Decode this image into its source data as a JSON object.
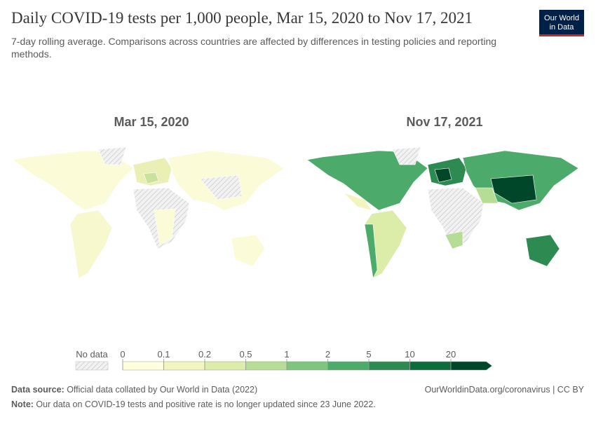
{
  "header": {
    "title": "Daily COVID-19 tests per 1,000 people, Mar 15, 2020 to Nov 17, 2021",
    "subtitle_lines": [
      "7-day rolling average. Comparisons across countries are affected by differences in testing policies and reporting",
      "methods."
    ]
  },
  "logo": {
    "lines": [
      "Our World",
      "in Data"
    ]
  },
  "maps": [
    {
      "title": "Mar 15, 2020"
    },
    {
      "title": "Nov 17, 2021"
    }
  ],
  "legend": {
    "no_data_label": "No data",
    "ticks": [
      0,
      0.1,
      0.2,
      0.5,
      1,
      2,
      5,
      10,
      20
    ],
    "colors": [
      "#ffffe0",
      "#f2f5bf",
      "#dcedaa",
      "#b5dd96",
      "#7fc47f",
      "#4caa6a",
      "#2d8a50",
      "#0e6b3a",
      "#00472a"
    ]
  },
  "footer": {
    "source_label": "Data source:",
    "source_text": " Official data collated by Our World in Data (2022)",
    "url": "OurWorldinData.org/coronavirus | CC BY",
    "note_label": "Note:",
    "note_text": " Our data on COVID-19 tests and positive rate is no longer updated since 23 June 2022."
  }
}
